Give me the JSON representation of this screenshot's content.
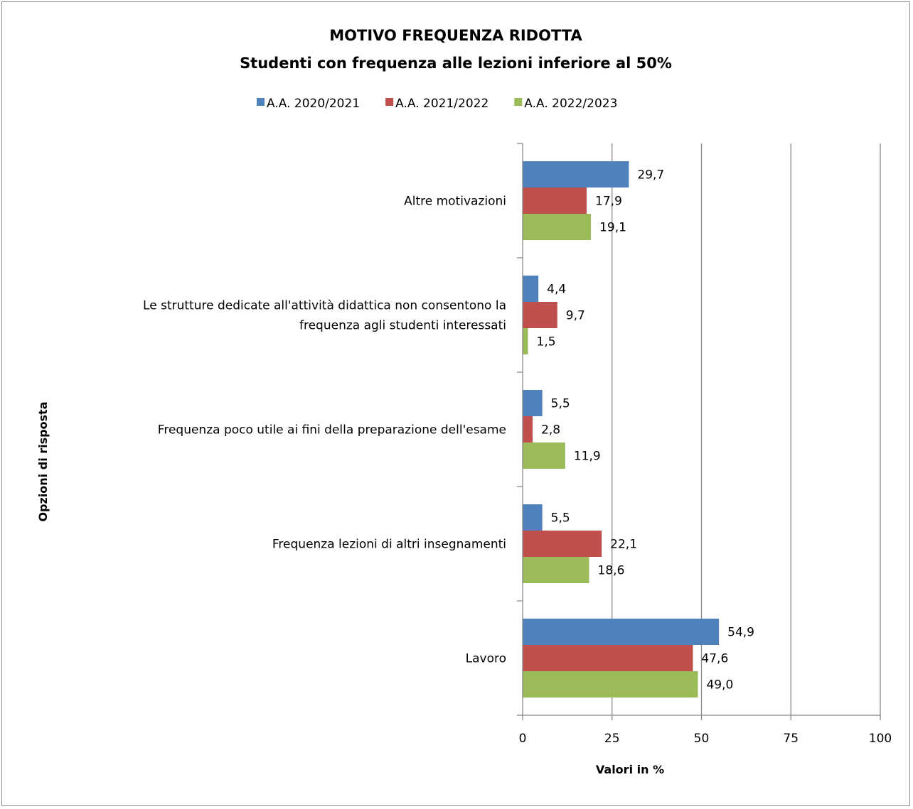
{
  "chart_data": {
    "type": "bar",
    "orientation": "horizontal",
    "title": "MOTIVO FREQUENZA RIDOTTA",
    "subtitle": "Studenti con frequenza alle lezioni  inferiore  al 50%",
    "xlabel": "Valori in %",
    "ylabel": "Opzioni di risposta",
    "xlim": [
      0,
      100
    ],
    "xticks": [
      0,
      25,
      50,
      75,
      100
    ],
    "grid": "vertical",
    "legend_position": "top",
    "categories": [
      "Altre motivazioni",
      "Le strutture dedicate all'attività didattica non consentono la frequenza agli studenti interessati",
      "Frequenza poco utile ai fini della preparazione dell'esame",
      "Frequenza lezioni di altri insegnamenti",
      "Lavoro"
    ],
    "category_lines": [
      [
        "Altre motivazioni"
      ],
      [
        "Le strutture dedicate all'attività didattica non consentono la",
        "frequenza agli studenti interessati"
      ],
      [
        "Frequenza poco utile ai fini della preparazione dell'esame"
      ],
      [
        "Frequenza lezioni di altri insegnamenti"
      ],
      [
        "Lavoro"
      ]
    ],
    "series": [
      {
        "name": "A.A. 2020/2021",
        "color": "#4f81bd",
        "values": [
          29.7,
          4.4,
          5.5,
          5.5,
          54.9
        ],
        "labels": [
          "29,7",
          "4,4",
          "5,5",
          "5,5",
          "54,9"
        ]
      },
      {
        "name": "A.A. 2021/2022",
        "color": "#c0504d",
        "values": [
          17.9,
          9.7,
          2.8,
          22.1,
          47.6
        ],
        "labels": [
          "17,9",
          "9,7",
          "2,8",
          "22,1",
          "47,6"
        ]
      },
      {
        "name": "A.A. 2022/2023",
        "color": "#9bbb59",
        "values": [
          19.1,
          1.5,
          11.9,
          18.6,
          49.0
        ],
        "labels": [
          "19,1",
          "1,5",
          "11,9",
          "18,6",
          "49,0"
        ]
      }
    ]
  }
}
